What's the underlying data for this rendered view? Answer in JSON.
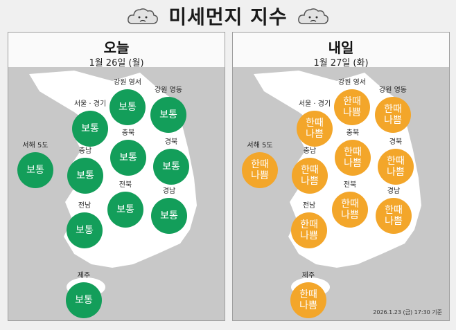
{
  "header": {
    "title": "미세먼지 지수",
    "icon": "sad-cloud-icon"
  },
  "colors": {
    "good": "#139e5a",
    "bad": "#f3a62a",
    "map": "#ffffff",
    "sea": "#c8c8c8"
  },
  "today": {
    "title": "오늘",
    "date": "1월 26일 (월)",
    "regions": [
      {
        "name": "강원 영서",
        "status": "보통"
      },
      {
        "name": "강원 영동",
        "status": "보통"
      },
      {
        "name": "서울 · 경기",
        "status": "보통"
      },
      {
        "name": "충북",
        "status": "보통"
      },
      {
        "name": "서해 5도",
        "status": "보통"
      },
      {
        "name": "충남",
        "status": "보통"
      },
      {
        "name": "경북",
        "status": "보통"
      },
      {
        "name": "전북",
        "status": "보통"
      },
      {
        "name": "전남",
        "status": "보통"
      },
      {
        "name": "경남",
        "status": "보통"
      },
      {
        "name": "제주",
        "status": "보통"
      }
    ]
  },
  "tomorrow": {
    "title": "내일",
    "date": "1월 27일 (화)",
    "regions": [
      {
        "name": "강원 영서",
        "status": "한때\n나쁨"
      },
      {
        "name": "강원 영동",
        "status": "한때\n나쁨"
      },
      {
        "name": "서울 · 경기",
        "status": "한때\n나쁨"
      },
      {
        "name": "충북",
        "status": "한때\n나쁨"
      },
      {
        "name": "서해 5도",
        "status": "한때\n나쁨"
      },
      {
        "name": "충남",
        "status": "한때\n나쁨"
      },
      {
        "name": "경북",
        "status": "한때\n나쁨"
      },
      {
        "name": "전북",
        "status": "한때\n나쁨"
      },
      {
        "name": "전남",
        "status": "한때\n나쁨"
      },
      {
        "name": "경남",
        "status": "한때\n나쁨"
      },
      {
        "name": "제주",
        "status": "한때\n나쁨"
      }
    ],
    "footnote": "2026.1.23 (금) 17:30 기준"
  }
}
